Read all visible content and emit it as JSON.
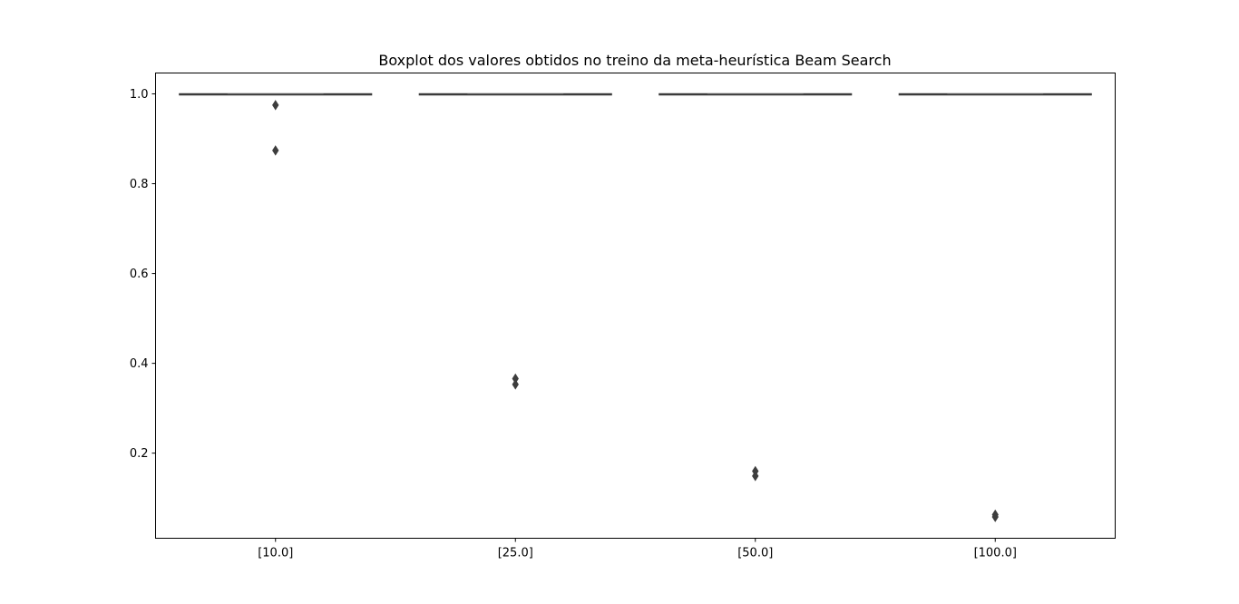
{
  "chart_data": {
    "type": "box",
    "title": "Boxplot dos valores obtidos no treino da meta-heurística Beam Search",
    "xlabel": "",
    "ylabel": "",
    "categories": [
      "[10.0]",
      "[25.0]",
      "[50.0]",
      "[100.0]"
    ],
    "ylim": [
      0.0105,
      1.0465
    ],
    "yticks": [
      0.2,
      0.4,
      0.6,
      0.8,
      1.0
    ],
    "ytick_labels": [
      "0.2",
      "0.4",
      "0.6",
      "0.8",
      "1.0"
    ],
    "grid": false,
    "boxes": [
      {
        "category": "[10.0]",
        "min": 1.0,
        "q1": 1.0,
        "median": 1.0,
        "q3": 1.0,
        "max": 1.0,
        "outliers": [
          0.975,
          0.874
        ]
      },
      {
        "category": "[25.0]",
        "min": 1.0,
        "q1": 1.0,
        "median": 1.0,
        "q3": 1.0,
        "max": 1.0,
        "outliers": [
          0.366,
          0.353
        ]
      },
      {
        "category": "[50.0]",
        "min": 1.0,
        "q1": 1.0,
        "median": 1.0,
        "q3": 1.0,
        "max": 1.0,
        "outliers": [
          0.16,
          0.149
        ]
      },
      {
        "category": "[100.0]",
        "min": 1.0,
        "q1": 1.0,
        "median": 1.0,
        "q3": 1.0,
        "max": 1.0,
        "outliers": [
          0.063,
          0.058
        ]
      }
    ],
    "colors": {
      "box": "#3b3b3b",
      "median": "#5a5a5a",
      "outlier": "#3d3d3d",
      "axes": "#000000"
    }
  }
}
